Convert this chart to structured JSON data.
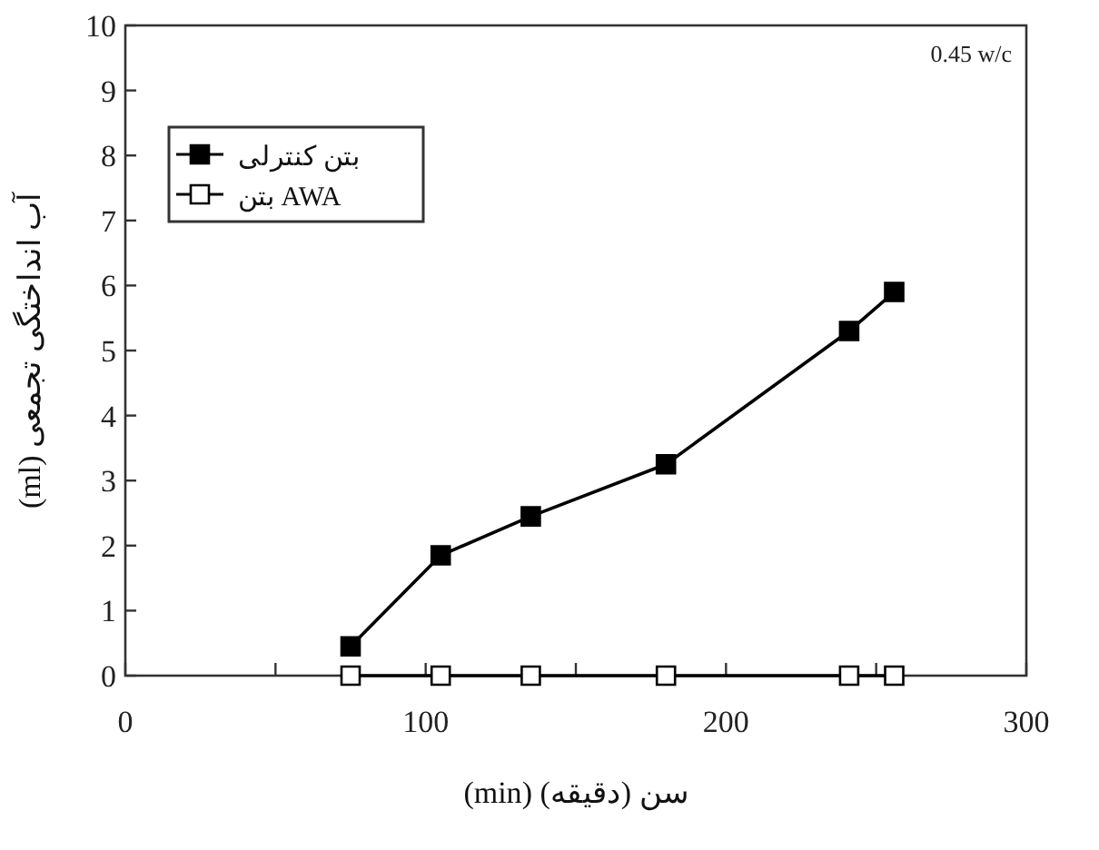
{
  "chart_data": {
    "type": "line",
    "xlabel": "سن (دقیقه) (min)",
    "ylabel": "آب انداختگی تجمعی (ml)",
    "annotations": [
      "0.45 w/c"
    ],
    "series": [
      {
        "name": "بتن کنترلی",
        "color": "#000000",
        "marker": "square",
        "x": [
          75,
          105,
          135,
          180,
          241,
          256
        ],
        "values": [
          0.45,
          1.85,
          2.45,
          3.25,
          5.3,
          5.9
        ]
      },
      {
        "name": "بتن AWA",
        "color": "#ffffff",
        "marker": "square",
        "x": [
          75,
          105,
          135,
          180,
          241,
          256
        ],
        "values": [
          0,
          0,
          0,
          0,
          0,
          0
        ]
      }
    ],
    "xlim": [
      0,
      300
    ],
    "xticks": [
      0,
      {
        "value": 50,
        "label": null
      },
      100,
      {
        "value": 150,
        "label": null
      },
      200,
      {
        "value": 250,
        "label": null
      },
      300
    ],
    "ylim": [
      0,
      10
    ],
    "yticks": [
      0,
      1,
      2,
      3,
      4,
      5,
      6,
      7,
      8,
      9,
      10
    ],
    "grid": false,
    "legend": "top left",
    "line_style": "solid"
  }
}
